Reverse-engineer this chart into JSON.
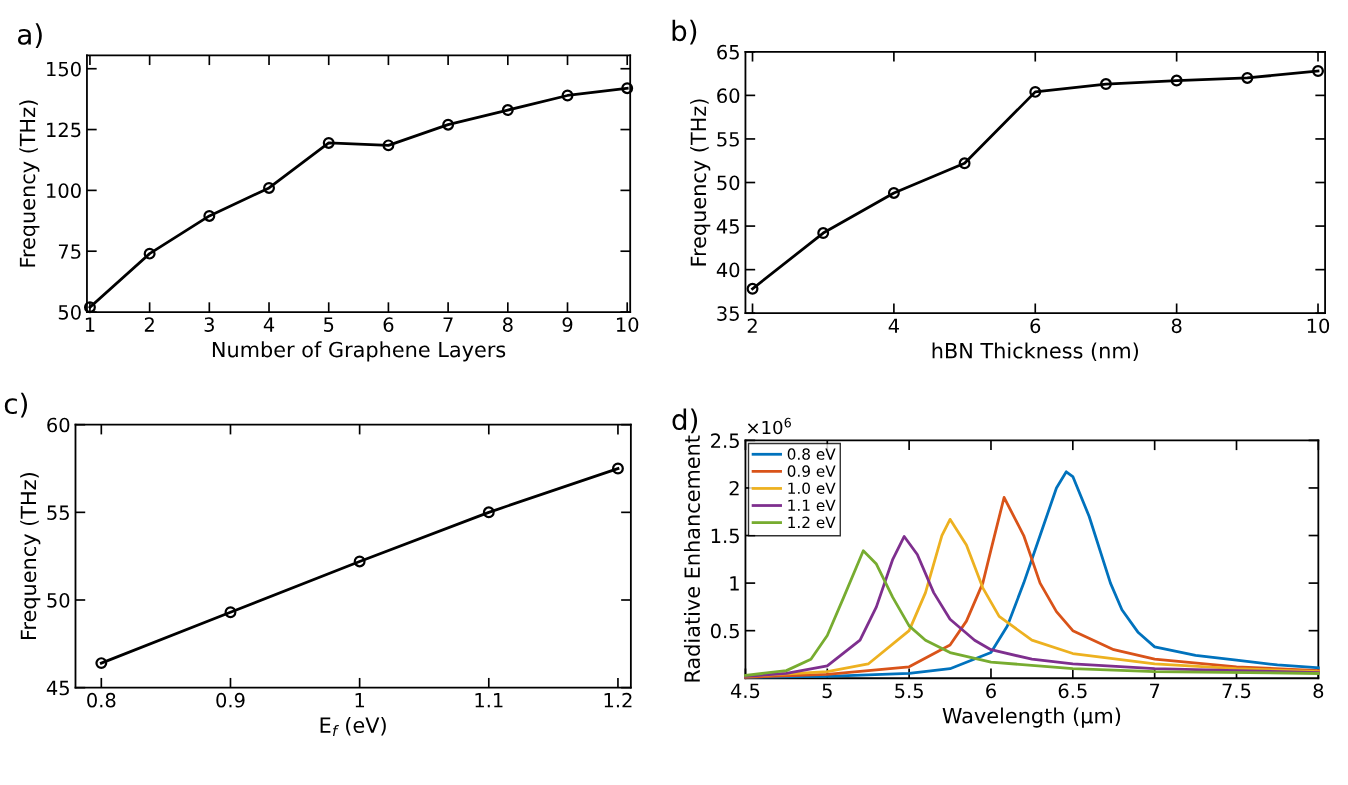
{
  "chart_data": [
    {
      "type": "line",
      "title": "a)",
      "xlabel": "Number of Graphene Layers",
      "ylabel": "Frequency (THz)",
      "x": [
        1,
        2,
        3,
        4,
        5,
        6,
        7,
        8,
        9,
        10
      ],
      "series": [
        {
          "color": "#000000",
          "values": [
            52,
            74,
            89.5,
            101,
            119.5,
            118.5,
            127,
            133,
            139,
            142
          ]
        }
      ],
      "xlim": [
        0.95,
        10.05
      ],
      "xticks": [
        1,
        2,
        3,
        4,
        5,
        6,
        7,
        8,
        9,
        10
      ],
      "ylim": [
        50,
        155.5
      ],
      "yticks": [
        50,
        75,
        100,
        125,
        150
      ],
      "marker": "circle",
      "line_style": "solid",
      "grid": false,
      "legend": false
    },
    {
      "type": "line",
      "title": "b)",
      "xlabel": "hBN Thickness (nm)",
      "ylabel": "Frequency (THz)",
      "x": [
        2,
        3,
        4,
        5,
        6,
        7,
        8,
        9,
        10
      ],
      "series": [
        {
          "color": "#000000",
          "values": [
            37.8,
            44.2,
            48.8,
            52.2,
            60.4,
            61.3,
            61.7,
            62.0,
            62.8
          ]
        }
      ],
      "xlim": [
        1.9,
        10.1
      ],
      "xticks": [
        2,
        4,
        6,
        8,
        10
      ],
      "ylim": [
        35,
        65
      ],
      "yticks": [
        35,
        40,
        45,
        50,
        55,
        60,
        65
      ],
      "marker": "circle",
      "line_style": "solid",
      "grid": false,
      "legend": false
    },
    {
      "type": "line",
      "title": "c)",
      "xlabel": "E$_{f}$ (eV)",
      "ylabel": "Frequency (THz)",
      "x": [
        0.8,
        0.9,
        1.0,
        1.1,
        1.2
      ],
      "series": [
        {
          "color": "#000000",
          "values": [
            46.4,
            49.3,
            52.2,
            55.0,
            57.5
          ]
        }
      ],
      "xlim": [
        0.78,
        1.21
      ],
      "xticks": [
        0.8,
        0.9,
        {
          "value": 1.0,
          "label": "1"
        },
        1.1,
        1.2
      ],
      "ylim": [
        45,
        60
      ],
      "yticks": [
        45,
        50,
        55,
        60
      ],
      "marker": "circle",
      "line_style": "solid",
      "grid": false,
      "legend": false
    },
    {
      "type": "line",
      "title": "d)",
      "xlabel": "Wavelength (μm)",
      "ylabel": "Radiative Enhancement",
      "annotations": [
        "×10$^{6}$"
      ],
      "series": [
        {
          "name": "0.8 eV",
          "color": "#0072bd",
          "x": [
            4.5,
            5.0,
            5.5,
            5.75,
            6.0,
            6.1,
            6.2,
            6.3,
            6.4,
            6.46,
            6.5,
            6.6,
            6.73,
            6.8,
            6.9,
            7.0,
            7.25,
            7.5,
            7.75,
            8.0
          ],
          "values": [
            0.01,
            0.02,
            0.05,
            0.1,
            0.27,
            0.55,
            1.0,
            1.5,
            2.0,
            2.17,
            2.12,
            1.7,
            1.0,
            0.72,
            0.48,
            0.33,
            0.24,
            0.19,
            0.14,
            0.11
          ]
        },
        {
          "name": "0.9 eV",
          "color": "#d95319",
          "x": [
            4.5,
            5.0,
            5.5,
            5.75,
            5.85,
            5.95,
            6.0,
            6.08,
            6.2,
            6.3,
            6.4,
            6.5,
            6.75,
            7.0,
            7.5,
            8.0
          ],
          "values": [
            0.01,
            0.04,
            0.12,
            0.35,
            0.6,
            1.0,
            1.35,
            1.9,
            1.5,
            1.0,
            0.7,
            0.5,
            0.3,
            0.2,
            0.12,
            0.08
          ]
        },
        {
          "name": "1.0 eV",
          "color": "#edb120",
          "x": [
            4.5,
            5.0,
            5.25,
            5.5,
            5.6,
            5.7,
            5.75,
            5.85,
            5.95,
            6.05,
            6.25,
            6.5,
            7.0,
            7.5,
            8.0
          ],
          "values": [
            0.02,
            0.07,
            0.15,
            0.5,
            0.9,
            1.5,
            1.67,
            1.4,
            0.95,
            0.65,
            0.4,
            0.26,
            0.15,
            0.1,
            0.07
          ]
        },
        {
          "name": "1.1 eV",
          "color": "#7e2f8e",
          "x": [
            4.5,
            4.75,
            5.0,
            5.2,
            5.3,
            5.4,
            5.47,
            5.55,
            5.65,
            5.75,
            5.9,
            6.0,
            6.25,
            6.5,
            7.0,
            7.5,
            8.0
          ],
          "values": [
            0.02,
            0.05,
            0.13,
            0.4,
            0.75,
            1.25,
            1.49,
            1.3,
            0.9,
            0.62,
            0.4,
            0.3,
            0.2,
            0.15,
            0.1,
            0.08,
            0.06
          ]
        },
        {
          "name": "1.2 eV",
          "color": "#77ac30",
          "x": [
            4.5,
            4.75,
            4.9,
            5.0,
            5.1,
            5.22,
            5.3,
            5.4,
            5.5,
            5.6,
            5.75,
            6.0,
            6.5,
            7.0,
            8.0
          ],
          "values": [
            0.03,
            0.08,
            0.2,
            0.45,
            0.85,
            1.34,
            1.2,
            0.85,
            0.55,
            0.4,
            0.27,
            0.17,
            0.1,
            0.07,
            0.05
          ]
        }
      ],
      "xlim": [
        4.5,
        8
      ],
      "xticks": [
        4.5,
        5,
        5.5,
        6,
        6.5,
        7,
        7.5,
        8
      ],
      "ylim": [
        0,
        2.5
      ],
      "yticks": [
        0.5,
        1,
        1.5,
        2,
        2.5
      ],
      "marker": "none",
      "line_style": "solid",
      "grid": false,
      "legend": "top left"
    }
  ]
}
